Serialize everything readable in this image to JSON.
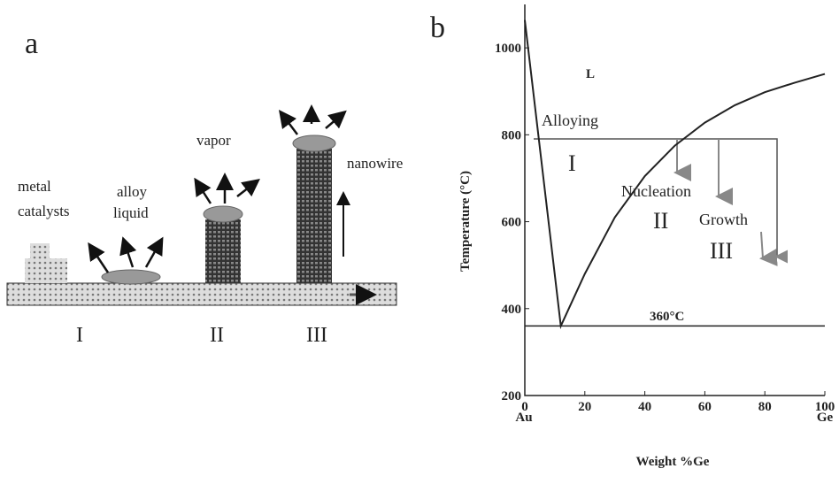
{
  "panel_a": {
    "label": "a",
    "metal": "metal",
    "catalysts": "catalysts",
    "alloy": "alloy",
    "liquid": "liquid",
    "vapor": "vapor",
    "nanowire": "nanowire",
    "stages": [
      "I",
      "II",
      "III"
    ]
  },
  "panel_b": {
    "label": "b",
    "y_label": "Temperature (°C)",
    "x_label": "Weight %Ge",
    "x_end_labels": [
      "Au",
      "Ge"
    ],
    "xlim": [
      0,
      100
    ],
    "ylim": [
      200,
      1100
    ],
    "xticks": [
      0,
      20,
      40,
      60,
      80,
      100
    ],
    "yticks": [
      200,
      400,
      600,
      800,
      1000
    ],
    "liquidus": {
      "x": [
        0,
        12,
        20,
        30,
        40,
        50,
        60,
        70,
        80,
        90,
        100
      ],
      "y": [
        1064,
        360,
        480,
        610,
        705,
        775,
        828,
        868,
        898,
        920,
        940
      ]
    },
    "eutectic_temp": 360,
    "annotations": {
      "liquid_region": "L",
      "alloying": "Alloying",
      "stage1": "I",
      "nucleation": "Nucleation",
      "stage2": "II",
      "growth": "Growth",
      "stage3": "III",
      "eutectic": "360°C"
    }
  }
}
